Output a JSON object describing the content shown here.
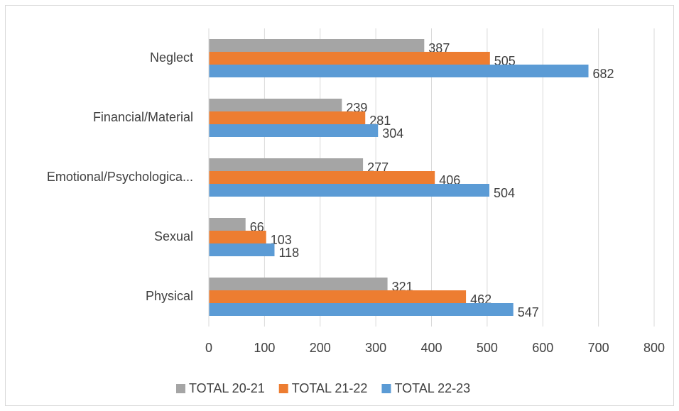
{
  "chart_data": {
    "type": "hbar",
    "categories": [
      "Neglect",
      "Financial/Material",
      "Emotional/Psychologica...",
      "Sexual",
      "Physical"
    ],
    "series": [
      {
        "name": "TOTAL 20-21",
        "color": "#a5a5a5",
        "values": [
          387,
          239,
          277,
          66,
          321
        ]
      },
      {
        "name": "TOTAL 21-22",
        "color": "#ed7d31",
        "values": [
          505,
          281,
          406,
          103,
          462
        ]
      },
      {
        "name": "TOTAL 22-23",
        "color": "#5b9bd5",
        "values": [
          682,
          304,
          504,
          118,
          547
        ]
      }
    ],
    "xlim": [
      0,
      800
    ],
    "xticks": [
      0,
      100,
      200,
      300,
      400,
      500,
      600,
      700,
      800
    ],
    "grid": true,
    "legend": "bottom"
  }
}
